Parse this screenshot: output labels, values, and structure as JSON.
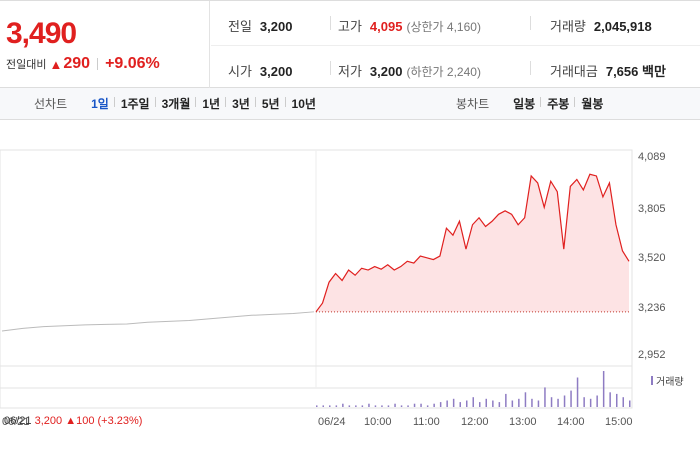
{
  "quote": {
    "price": "3,490",
    "change_label": "전일대비",
    "change_value": "290",
    "change_pct": "+9.06%"
  },
  "stats": {
    "prev_close": {
      "label": "전일",
      "value": "3,200"
    },
    "high": {
      "label": "고가",
      "value": "4,095",
      "sub": "(상한가 4,160)"
    },
    "volume": {
      "label": "거래량",
      "value": "2,045,918"
    },
    "open": {
      "label": "시가",
      "value": "3,200"
    },
    "low": {
      "label": "저가",
      "value": "3,200",
      "sub": "(하한가 2,240)"
    },
    "turnover": {
      "label": "거래대금",
      "value": "7,656 백만"
    }
  },
  "line_tabs": {
    "title": "선차트",
    "items": [
      "1일",
      "1주일",
      "3개월",
      "1년",
      "3년",
      "5년",
      "10년"
    ],
    "active": "1일"
  },
  "candle_tabs": {
    "title": "봉차트",
    "items": [
      "일봉",
      "주봉",
      "월봉"
    ]
  },
  "colors": {
    "up": "#e0201f",
    "fill": "#fde3e4",
    "prev_line": "#bbbbbb",
    "volume": "#8e7cc3",
    "active_tab": "#1a56c7"
  },
  "chart_data": {
    "type": "line",
    "y_ticks": [
      "4,089",
      "3,805",
      "3,520",
      "3,236",
      "2,952"
    ],
    "ylim": [
      2952,
      4089
    ],
    "baseline": 3200,
    "x_labels": [
      "06/21",
      "06/24",
      "10:00",
      "11:00",
      "12:00",
      "13:00",
      "14:00",
      "15:00"
    ],
    "prev_day": {
      "date": "06/21",
      "close": "3,200",
      "change": "100",
      "change_pct": "(+3.23%)"
    },
    "prev_series": [
      3090,
      3105,
      3115,
      3120,
      3125,
      3128,
      3130,
      3140,
      3145,
      3150,
      3160,
      3170,
      3180,
      3185,
      3190,
      3200
    ],
    "today_series": [
      3200,
      3250,
      3370,
      3420,
      3380,
      3440,
      3410,
      3450,
      3440,
      3460,
      3445,
      3470,
      3440,
      3460,
      3490,
      3480,
      3520,
      3510,
      3500,
      3520,
      3680,
      3640,
      3720,
      3560,
      3700,
      3740,
      3690,
      3720,
      3760,
      3780,
      3760,
      3700,
      3740,
      3980,
      3940,
      3800,
      3950,
      3890,
      3560,
      3920,
      3960,
      3900,
      3990,
      3980,
      3860,
      3940,
      3700,
      3550,
      3490
    ],
    "legend": "거래량",
    "volume": [
      1,
      1,
      1,
      1,
      2,
      1,
      1,
      1,
      2,
      1,
      1,
      1,
      2,
      1,
      1,
      2,
      2,
      1,
      2,
      3,
      4,
      5,
      3,
      4,
      6,
      3,
      5,
      4,
      3,
      8,
      4,
      5,
      9,
      5,
      4,
      12,
      6,
      5,
      7,
      10,
      18,
      6,
      5,
      7,
      22,
      9,
      8,
      6,
      4
    ]
  }
}
